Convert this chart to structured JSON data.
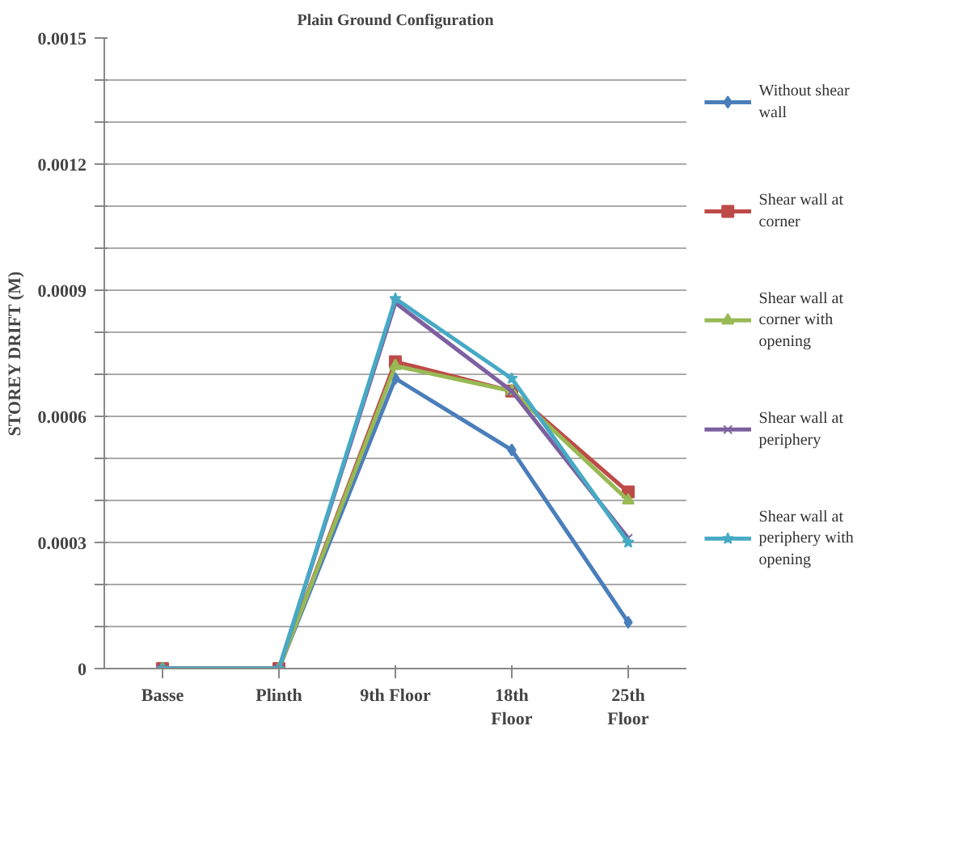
{
  "chart_data": {
    "type": "line",
    "title": "Plain Ground Configuration",
    "ylabel": "STOREY DRIFT (M)",
    "categories": [
      "Basse",
      "Plinth",
      "9th Floor",
      "18th\nFloor",
      "25th\nFloor"
    ],
    "series": [
      {
        "name": "Without shear wall",
        "color": "#4a7ebb",
        "marker": "diamond",
        "values": [
          0,
          0,
          0.00069,
          0.00052,
          0.00011
        ]
      },
      {
        "name": "Shear wall at corner",
        "color": "#be4b48",
        "marker": "square",
        "values": [
          0,
          0,
          0.00073,
          0.00066,
          0.00042
        ]
      },
      {
        "name": "Shear wall at corner with opening",
        "color": "#98b954",
        "marker": "triangle",
        "values": [
          0,
          0,
          0.00072,
          0.00066,
          0.0004
        ]
      },
      {
        "name": "Shear wall at periphery",
        "color": "#7d60a0",
        "marker": "x",
        "values": [
          0,
          0,
          0.00087,
          0.00066,
          0.00031
        ]
      },
      {
        "name": "Shear wall at periphery with opening",
        "color": "#46aac5",
        "marker": "star",
        "values": [
          0,
          0,
          0.00088,
          0.00069,
          0.0003
        ]
      }
    ],
    "ylim": [
      0,
      0.0015
    ],
    "yticks": [
      0,
      {
        "value": 0.0001,
        "label": null
      },
      {
        "value": 0.0002,
        "label": null
      },
      0.0003,
      {
        "value": 0.0004,
        "label": null
      },
      {
        "value": 0.0005,
        "label": null
      },
      0.0006,
      {
        "value": 0.0007,
        "label": null
      },
      {
        "value": 0.0008,
        "label": null
      },
      0.0009,
      {
        "value": 0.001,
        "label": null
      },
      {
        "value": 0.0011,
        "label": null
      },
      0.0012,
      {
        "value": 0.0013,
        "label": null
      },
      {
        "value": 0.0014,
        "label": null
      },
      0.0015
    ],
    "grid": "y",
    "legend": "right",
    "line_style": "solid"
  }
}
